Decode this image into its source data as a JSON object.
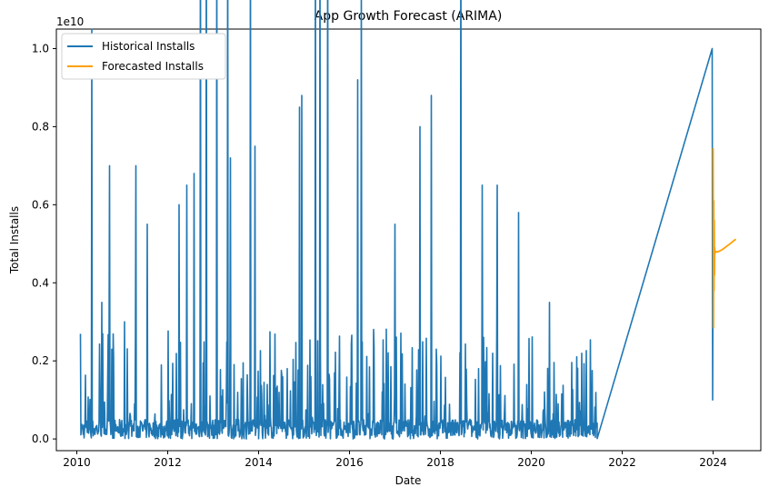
{
  "chart_data": {
    "type": "line",
    "title": "App Growth Forecast (ARIMA)",
    "xlabel": "Date",
    "ylabel": "Total Installs",
    "y_offset_label": "1e10",
    "xlim": [
      2009.55,
      2025.05
    ],
    "ylim": [
      -0.03,
      1.05
    ],
    "x_ticks": [
      2010,
      2012,
      2014,
      2016,
      2018,
      2020,
      2022,
      2024
    ],
    "x_tick_labels": [
      "2010",
      "2012",
      "2014",
      "2016",
      "2018",
      "2020",
      "2022",
      "2024"
    ],
    "y_ticks": [
      0.0,
      0.2,
      0.4,
      0.6,
      0.8,
      1.0
    ],
    "y_tick_labels": [
      "0.0",
      "0.2",
      "0.4",
      "0.6",
      "0.8",
      "1.0"
    ],
    "legend_position": "top-left",
    "series": [
      {
        "name": "Historical Installs",
        "color": "#1f77b4",
        "spikes": [
          [
            2010.33,
            1.05
          ],
          [
            2010.55,
            0.35
          ],
          [
            2010.72,
            0.7
          ],
          [
            2011.05,
            0.3
          ],
          [
            2011.3,
            0.7
          ],
          [
            2011.55,
            0.55
          ],
          [
            2012.25,
            0.6
          ],
          [
            2012.42,
            0.65
          ],
          [
            2012.58,
            0.68
          ],
          [
            2012.72,
            1.4
          ],
          [
            2012.85,
            1.35
          ],
          [
            2013.08,
            1.3
          ],
          [
            2013.32,
            1.35
          ],
          [
            2013.38,
            0.72
          ],
          [
            2013.82,
            1.35
          ],
          [
            2013.92,
            0.75
          ],
          [
            2014.9,
            0.85
          ],
          [
            2014.95,
            0.88
          ],
          [
            2015.25,
            1.3
          ],
          [
            2015.35,
            1.3
          ],
          [
            2015.52,
            1.38
          ],
          [
            2016.18,
            0.92
          ],
          [
            2016.26,
            1.2
          ],
          [
            2017.0,
            0.55
          ],
          [
            2017.55,
            0.8
          ],
          [
            2017.8,
            0.88
          ],
          [
            2018.45,
            1.42
          ],
          [
            2018.92,
            0.65
          ],
          [
            2019.25,
            0.65
          ],
          [
            2019.72,
            0.58
          ],
          [
            2020.4,
            0.35
          ]
        ],
        "tail_values": [
          [
            2021.45,
            0.001
          ],
          [
            2023.98,
            1.0
          ],
          [
            2023.99,
            0.1
          ],
          [
            2023.995,
            0.32
          ]
        ]
      },
      {
        "name": "Forecasted Installs",
        "color": "#ff9f00",
        "x": [
          2024.0,
          2024.01,
          2024.015,
          2024.02,
          2024.025,
          2024.03,
          2024.035,
          2024.04,
          2024.06,
          2024.1,
          2024.2,
          2024.35,
          2024.5
        ],
        "values": [
          0.745,
          0.285,
          0.61,
          0.38,
          0.56,
          0.42,
          0.49,
          0.475,
          0.48,
          0.479,
          0.485,
          0.498,
          0.512
        ]
      }
    ]
  }
}
